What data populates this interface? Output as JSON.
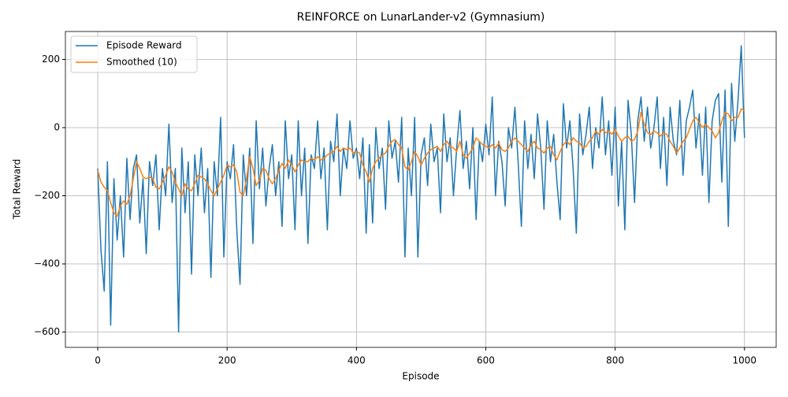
{
  "chart_data": {
    "type": "line",
    "title": "REINFORCE on LunarLander-v2 (Gymnasium)",
    "x_label": "Episode",
    "y_label": "Total Reward",
    "xlim": [
      -50,
      1049
    ],
    "ylim": [
      -645,
      282
    ],
    "xticks": [
      0,
      200,
      400,
      600,
      800,
      1000
    ],
    "yticks": [
      {
        "value": -600,
        "label": "−600"
      },
      {
        "value": -400,
        "label": "−400"
      },
      {
        "value": -200,
        "label": "−200"
      },
      0,
      200
    ],
    "grid": true,
    "legend": "upper-left",
    "x": [
      0,
      5,
      10,
      15,
      20,
      25,
      30,
      35,
      40,
      45,
      50,
      55,
      60,
      65,
      70,
      75,
      80,
      85,
      90,
      95,
      100,
      105,
      110,
      115,
      120,
      125,
      130,
      135,
      140,
      145,
      150,
      155,
      160,
      165,
      170,
      175,
      180,
      185,
      190,
      195,
      200,
      205,
      210,
      215,
      220,
      225,
      230,
      235,
      240,
      245,
      250,
      255,
      260,
      265,
      270,
      275,
      280,
      285,
      290,
      295,
      300,
      305,
      310,
      315,
      320,
      325,
      330,
      335,
      340,
      345,
      350,
      355,
      360,
      365,
      370,
      375,
      380,
      385,
      390,
      395,
      400,
      405,
      410,
      415,
      420,
      425,
      430,
      435,
      440,
      445,
      450,
      455,
      460,
      465,
      470,
      475,
      480,
      485,
      490,
      495,
      500,
      505,
      510,
      515,
      520,
      525,
      530,
      535,
      540,
      545,
      550,
      555,
      560,
      565,
      570,
      575,
      580,
      585,
      590,
      595,
      600,
      605,
      610,
      615,
      620,
      625,
      630,
      635,
      640,
      645,
      650,
      655,
      660,
      665,
      670,
      675,
      680,
      685,
      690,
      695,
      700,
      705,
      710,
      715,
      720,
      725,
      730,
      735,
      740,
      745,
      750,
      755,
      760,
      765,
      770,
      775,
      780,
      785,
      790,
      795,
      800,
      805,
      810,
      815,
      820,
      825,
      830,
      835,
      840,
      845,
      850,
      855,
      860,
      865,
      870,
      875,
      880,
      885,
      890,
      895,
      900,
      905,
      910,
      915,
      920,
      925,
      930,
      935,
      940,
      945,
      950,
      955,
      960,
      965,
      970,
      975,
      980,
      985,
      990,
      995,
      1000
    ],
    "series": [
      {
        "name": "Episode Reward",
        "color": "#1f77b4",
        "values": [
          -120,
          -360,
          -480,
          -100,
          -580,
          -150,
          -330,
          -200,
          -380,
          -90,
          -270,
          -120,
          -80,
          -280,
          -150,
          -370,
          -100,
          -170,
          -80,
          -300,
          -120,
          -200,
          10,
          -220,
          -120,
          -600,
          -60,
          -250,
          -100,
          -430,
          -80,
          -200,
          -60,
          -250,
          -120,
          -440,
          -100,
          -200,
          30,
          -380,
          -100,
          -150,
          -50,
          -300,
          -460,
          -80,
          -200,
          -60,
          -340,
          20,
          -180,
          -60,
          -230,
          -120,
          -50,
          -200,
          -100,
          -290,
          20,
          -150,
          -80,
          -300,
          20,
          -200,
          -60,
          -340,
          -80,
          -120,
          20,
          -150,
          -60,
          -300,
          -40,
          -100,
          40,
          -200,
          -60,
          -120,
          20,
          -90,
          -60,
          -150,
          -30,
          -310,
          -50,
          -280,
          0,
          -120,
          -60,
          -240,
          20,
          -90,
          -40,
          -160,
          30,
          -380,
          -60,
          -200,
          30,
          -380,
          -80,
          -30,
          -170,
          10,
          -100,
          -60,
          -250,
          40,
          -100,
          -30,
          -200,
          -60,
          50,
          -120,
          -40,
          -180,
          0,
          -270,
          -40,
          -100,
          10,
          -80,
          90,
          -200,
          -40,
          -100,
          -230,
          0,
          -60,
          60,
          -100,
          -290,
          20,
          -120,
          -20,
          -150,
          40,
          -60,
          -240,
          20,
          -100,
          -20,
          -160,
          -270,
          70,
          -60,
          20,
          -120,
          -310,
          40,
          -80,
          -20,
          60,
          -120,
          0,
          -60,
          90,
          -80,
          20,
          -140,
          60,
          -230,
          -40,
          -300,
          80,
          -20,
          -220,
          20,
          90,
          -40,
          60,
          -60,
          0,
          90,
          -120,
          30,
          -170,
          60,
          -40,
          -80,
          80,
          -140,
          20,
          60,
          110,
          -60,
          40,
          -140,
          60,
          -220,
          20,
          80,
          100,
          -160,
          110,
          -290,
          130,
          -40,
          80,
          240,
          -30
        ]
      },
      {
        "name": "Smoothed (10)",
        "color": "#ff7f0e",
        "values": [
          -125,
          -160,
          -175,
          -185,
          -220,
          -250,
          -260,
          -230,
          -215,
          -225,
          -200,
          -150,
          -100,
          -120,
          -145,
          -150,
          -145,
          -150,
          -175,
          -180,
          -160,
          -140,
          -115,
          -130,
          -160,
          -180,
          -200,
          -165,
          -180,
          -185,
          -165,
          -140,
          -145,
          -150,
          -165,
          -185,
          -200,
          -180,
          -160,
          -140,
          -110,
          -115,
          -110,
          -130,
          -190,
          -200,
          -150,
          -85,
          -120,
          -170,
          -155,
          -120,
          -125,
          -150,
          -165,
          -150,
          -125,
          -105,
          -120,
          -95,
          -110,
          -130,
          -110,
          -95,
          -100,
          -100,
          -90,
          -95,
          -85,
          -95,
          -90,
          -80,
          -75,
          -70,
          -55,
          -70,
          -60,
          -65,
          -60,
          -75,
          -70,
          -75,
          -110,
          -130,
          -160,
          -120,
          -100,
          -90,
          -80,
          -75,
          -55,
          -40,
          -35,
          -50,
          -60,
          -115,
          -125,
          -100,
          -70,
          -85,
          -110,
          -90,
          -75,
          -65,
          -60,
          -55,
          -70,
          -50,
          -40,
          -55,
          -60,
          -70,
          -40,
          -80,
          -90,
          -75,
          -60,
          -30,
          -40,
          -50,
          -55,
          -60,
          -50,
          -60,
          -45,
          -65,
          -70,
          -60,
          -40,
          -30,
          -40,
          -50,
          -60,
          -70,
          -50,
          -40,
          -60,
          -65,
          -75,
          -60,
          -55,
          -80,
          -95,
          -70,
          -50,
          -40,
          -50,
          -30,
          -40,
          -45,
          -60,
          -55,
          -40,
          -30,
          -10,
          -20,
          -5,
          -15,
          -10,
          -20,
          -5,
          -25,
          -40,
          -30,
          -25,
          -40,
          -35,
          -10,
          45,
          10,
          -15,
          -20,
          -10,
          -15,
          -25,
          -15,
          -20,
          -40,
          -55,
          -75,
          -60,
          -40,
          -30,
          -5,
          20,
          30,
          15,
          0,
          10,
          0,
          -10,
          -30,
          -15,
          20,
          45,
          40,
          20,
          30,
          30,
          55,
          50
        ]
      }
    ]
  }
}
